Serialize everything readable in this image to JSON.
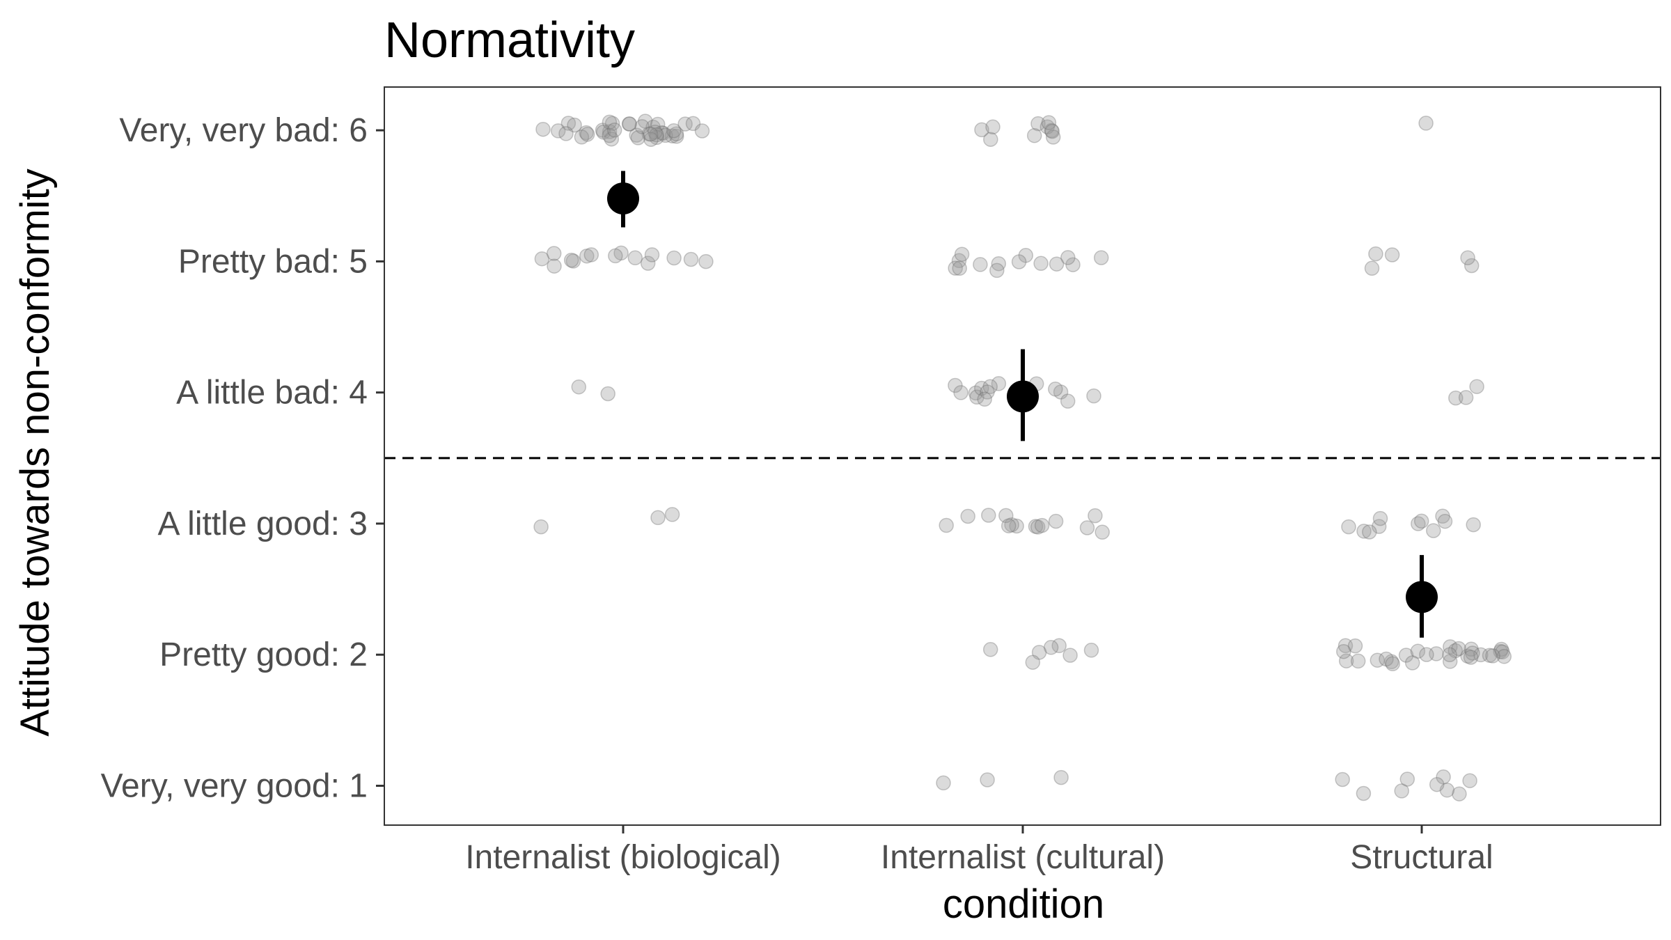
{
  "chart_data": {
    "type": "scatter",
    "title": "Normativity",
    "xlabel": "condition",
    "ylabel": "Attitude towards non-conformity",
    "categories": [
      "Internalist (biological)",
      "Internalist (cultural)",
      "Structural"
    ],
    "y_ticks": [
      {
        "value": 1,
        "label": "Very, very good: 1"
      },
      {
        "value": 2,
        "label": "Pretty good: 2"
      },
      {
        "value": 3,
        "label": "A little good: 3"
      },
      {
        "value": 4,
        "label": "A little bad: 4"
      },
      {
        "value": 5,
        "label": "Pretty bad: 5"
      },
      {
        "value": 6,
        "label": "Very, very bad: 6"
      }
    ],
    "ylim": [
      0.7,
      6.33
    ],
    "reference_line": {
      "y": 3.5,
      "style": "dashed"
    },
    "grid": false,
    "legend": "none",
    "colors": {
      "points": "#999999",
      "summary": "#000000",
      "reference": "#000000"
    },
    "points": [
      {
        "category": "Internalist (biological)",
        "responses": [
          {
            "y": 6,
            "count": 40
          },
          {
            "y": 5,
            "count": 15
          },
          {
            "y": 4,
            "count": 2
          },
          {
            "y": 3,
            "count": 3
          },
          {
            "y": 2,
            "count": 0
          },
          {
            "y": 1,
            "count": 0
          }
        ]
      },
      {
        "category": "Internalist (cultural)",
        "responses": [
          {
            "y": 6,
            "count": 10
          },
          {
            "y": 5,
            "count": 14
          },
          {
            "y": 4,
            "count": 14
          },
          {
            "y": 3,
            "count": 14
          },
          {
            "y": 2,
            "count": 7
          },
          {
            "y": 1,
            "count": 3
          }
        ]
      },
      {
        "category": "Structural",
        "responses": [
          {
            "y": 6,
            "count": 1
          },
          {
            "y": 5,
            "count": 5
          },
          {
            "y": 4,
            "count": 3
          },
          {
            "y": 3,
            "count": 11
          },
          {
            "y": 2,
            "count": 30
          },
          {
            "y": 1,
            "count": 9
          }
        ]
      }
    ],
    "summary": [
      {
        "category": "Internalist (biological)",
        "mean": 5.48,
        "ci": [
          5.26,
          5.69
        ]
      },
      {
        "category": "Internalist (cultural)",
        "mean": 3.97,
        "ci": [
          3.63,
          4.33
        ]
      },
      {
        "category": "Structural",
        "mean": 2.44,
        "ci": [
          2.13,
          2.76
        ]
      }
    ]
  }
}
